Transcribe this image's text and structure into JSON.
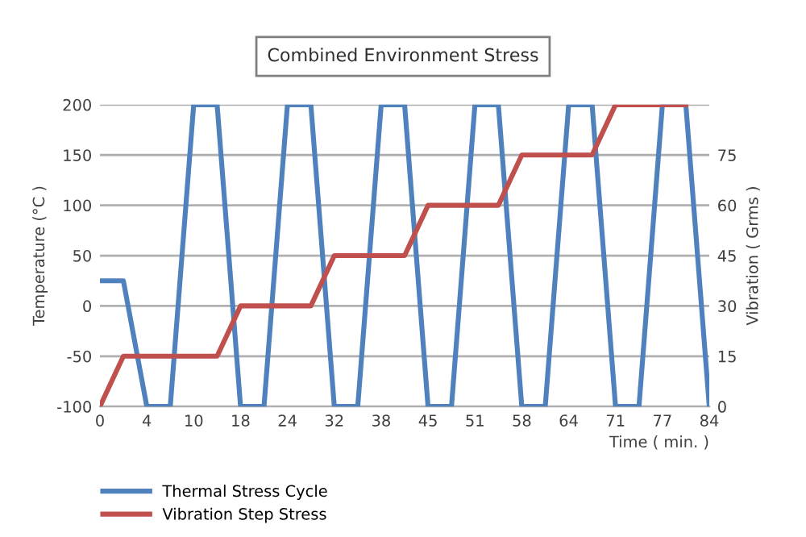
{
  "chart_data": {
    "type": "line",
    "title": "Combined Environment Stress",
    "xlabel": "Time ( min. )",
    "ylabel": "Temperature (°C )",
    "y2label": "Vibration ( Grms )",
    "categories": [
      "0",
      null,
      "4",
      null,
      "10",
      null,
      "18",
      null,
      "24",
      null,
      "32",
      null,
      "38",
      null,
      "45",
      null,
      "51",
      null,
      "58",
      null,
      "64",
      null,
      "71",
      null,
      "77",
      null,
      "84"
    ],
    "series": [
      {
        "name": "Thermal Stress Cycle",
        "color": "#4f81bd",
        "values": [
          25,
          25,
          -100,
          -100,
          200,
          200,
          -100,
          -100,
          200,
          200,
          -100,
          -100,
          200,
          200,
          -100,
          -100,
          200,
          200,
          -100,
          -100,
          200,
          200,
          -100,
          -100,
          200,
          200,
          -100
        ]
      },
      {
        "name": "Vibration Step Stress",
        "color": "#c0504d",
        "axis": "y2",
        "values": [
          0,
          15,
          15,
          15,
          15,
          15,
          30,
          30,
          30,
          30,
          45,
          45,
          45,
          45,
          60,
          60,
          60,
          60,
          75,
          75,
          75,
          75,
          90,
          90,
          90,
          90,
          null
        ]
      }
    ],
    "ylim": [
      -100,
      200
    ],
    "yticks": [
      -100,
      -50,
      0,
      50,
      100,
      150,
      200
    ],
    "y2lim": [
      0,
      90
    ],
    "y2ticks": [
      0,
      15,
      30,
      45,
      60,
      75,
      {
        "value": 90,
        "label": null
      }
    ],
    "grid": "y",
    "legend": "bottom left",
    "marker": "none",
    "line_style": "solid"
  }
}
